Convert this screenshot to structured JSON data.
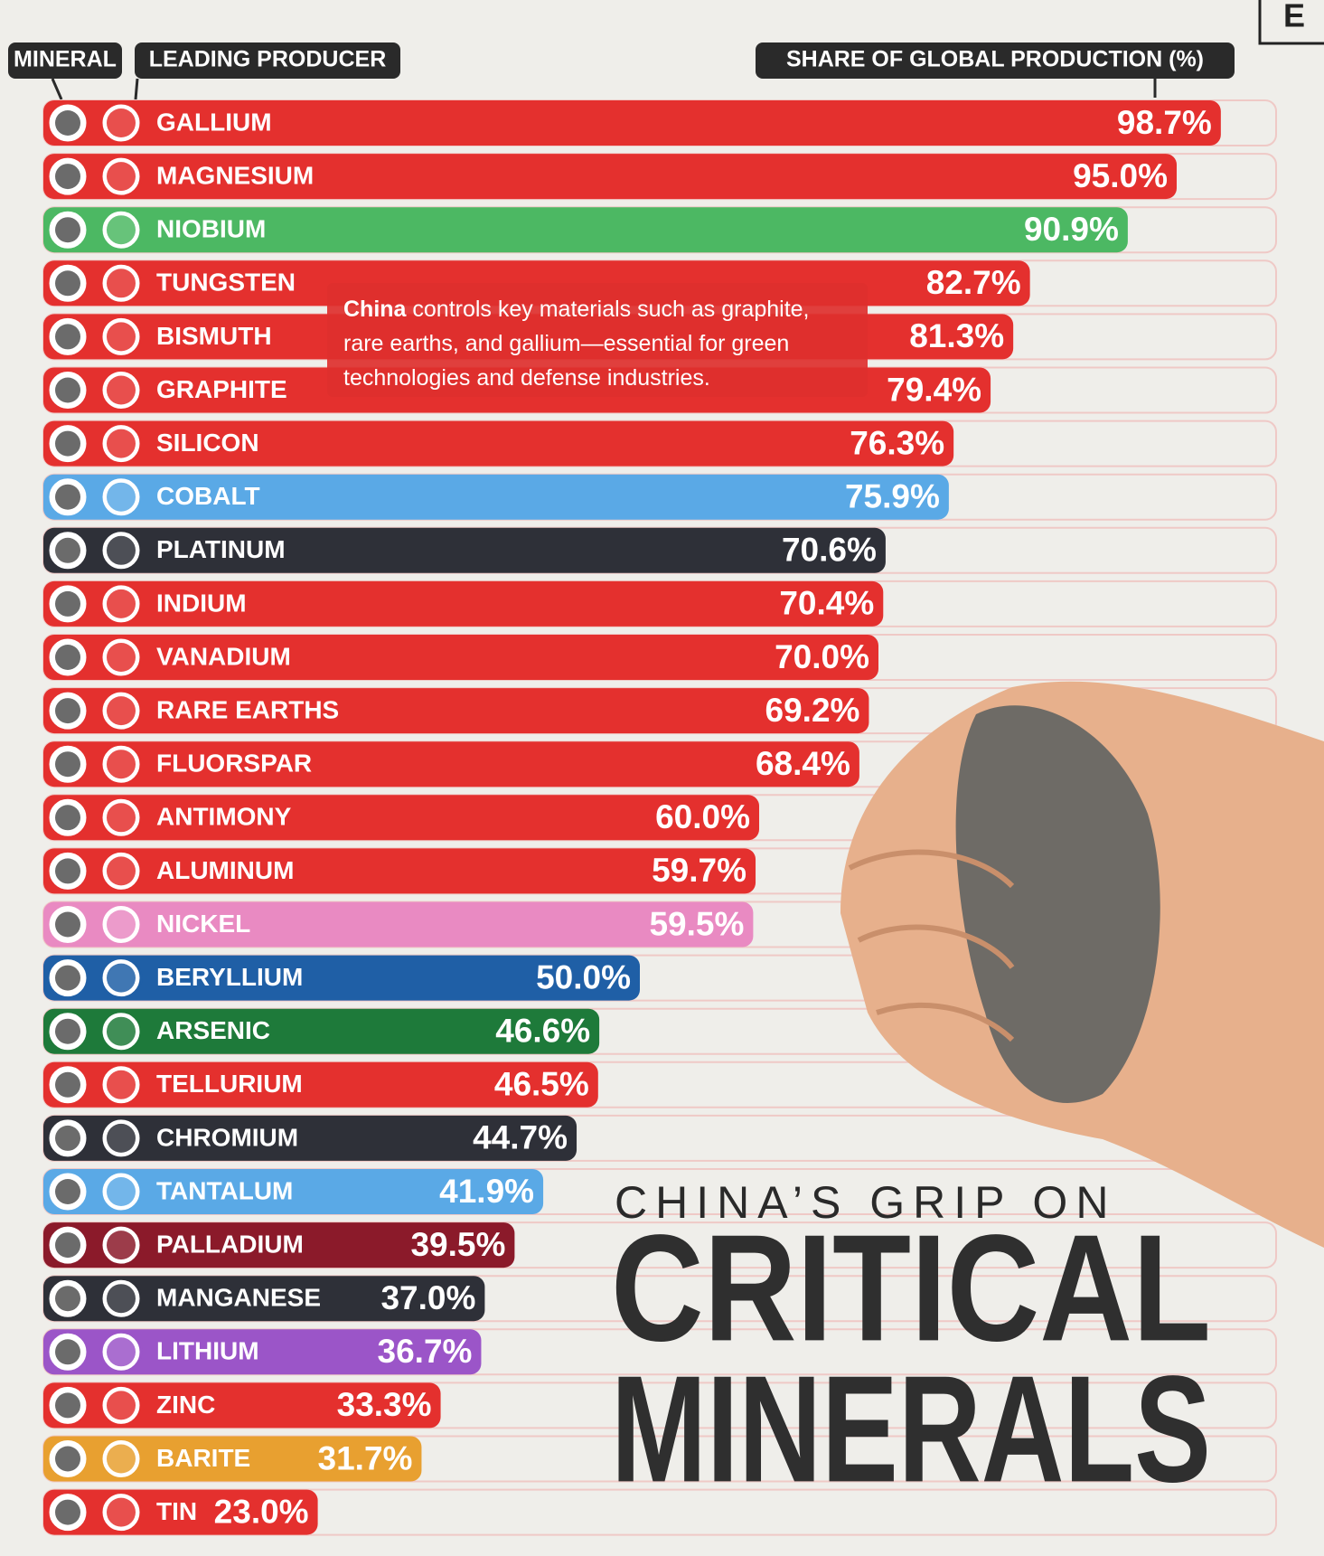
{
  "chart_data": {
    "type": "bar",
    "orientation": "horizontal",
    "logo": "E",
    "headers": {
      "mineral": "MINERAL",
      "producer": "LEADING PRODUCER",
      "share": "SHARE OF GLOBAL PRODUCTION (%)"
    },
    "subtitle": "CHINA’S GRIP ON",
    "title_lines": [
      "CRITICAL",
      "MINERALS"
    ],
    "annotation": {
      "bold": "China",
      "text": " controls key materials such as graphite, rare earths, and gallium—essential for green technologies and defense industries."
    },
    "categories": [
      "GALLIUM",
      "MAGNESIUM",
      "NIOBIUM",
      "TUNGSTEN",
      "BISMUTH",
      "GRAPHITE",
      "SILICON",
      "COBALT",
      "PLATINUM",
      "INDIUM",
      "VANADIUM",
      "RARE EARTHS",
      "FLUORSPAR",
      "ANTIMONY",
      "ALUMINUM",
      "NICKEL",
      "BERYLLIUM",
      "ARSENIC",
      "TELLURIUM",
      "CHROMIUM",
      "TANTALUM",
      "PALLADIUM",
      "MANGANESE",
      "LITHIUM",
      "ZINC",
      "BARITE",
      "TIN"
    ],
    "values": [
      98.7,
      95.0,
      90.9,
      82.7,
      81.3,
      79.4,
      76.3,
      75.9,
      70.6,
      70.4,
      70.0,
      69.2,
      68.4,
      60.0,
      59.7,
      59.5,
      50.0,
      46.6,
      46.5,
      44.7,
      41.9,
      39.5,
      37.0,
      36.7,
      33.3,
      31.7,
      23.0
    ],
    "value_labels": [
      "98.7%",
      "95.0%",
      "90.9%",
      "82.7%",
      "81.3%",
      "79.4%",
      "76.3%",
      "75.9%",
      "70.6%",
      "70.4%",
      "70.0%",
      "69.2%",
      "68.4%",
      "60.0%",
      "59.7%",
      "59.5%",
      "50.0%",
      "46.6%",
      "46.5%",
      "44.7%",
      "41.9%",
      "39.5%",
      "37.0%",
      "36.7%",
      "33.3%",
      "31.7%",
      "23.0%"
    ],
    "colors": [
      "#e4302e",
      "#e4302e",
      "#4cb863",
      "#e4302e",
      "#e4302e",
      "#e4302e",
      "#e4302e",
      "#5aa9e6",
      "#2e3038",
      "#e4302e",
      "#e4302e",
      "#e4302e",
      "#e4302e",
      "#e4302e",
      "#e4302e",
      "#e98ac2",
      "#1f5fa6",
      "#1e7a3a",
      "#e4302e",
      "#2e3038",
      "#5aa9e6",
      "#8b1a2a",
      "#2e3038",
      "#9b55c8",
      "#e4302e",
      "#e8a030",
      "#e4302e"
    ],
    "xlim": [
      0,
      100
    ]
  }
}
